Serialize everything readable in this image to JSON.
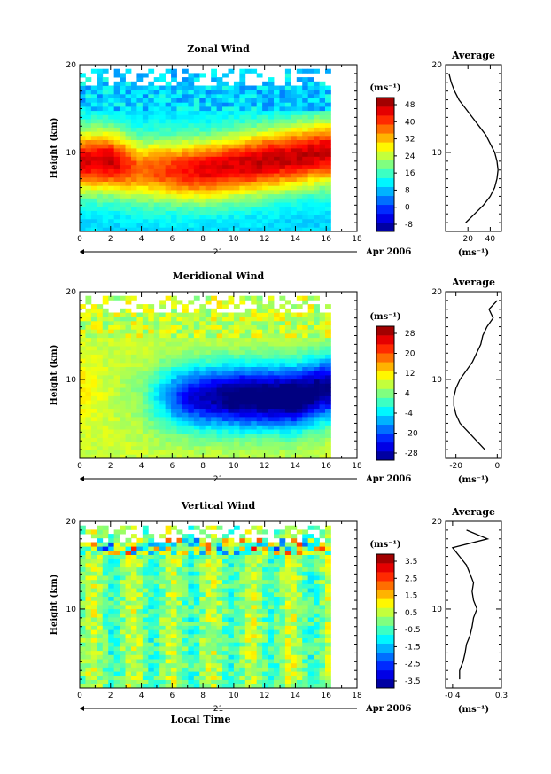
{
  "chart_data": [
    {
      "type": "heatmap",
      "title": "Zonal Wind",
      "ylabel": "Height (km)",
      "xlim": [
        0,
        18
      ],
      "ylim": [
        1,
        20
      ],
      "x_ticks": [
        0,
        2,
        4,
        6,
        8,
        10,
        12,
        14,
        16,
        18
      ],
      "y_ticks": [
        10,
        20
      ],
      "day_label": "21",
      "date_label": "Apr 2006",
      "xlabel": "",
      "colorbar": {
        "unit_label": "(ms⁻¹)",
        "ticks": [
          "48",
          "40",
          "32",
          "24",
          "16",
          "8",
          "0",
          "-8"
        ],
        "range": [
          -8,
          52
        ]
      },
      "field": {
        "x_end": 16.3,
        "jet_core": [
          {
            "x": 0,
            "height": 9,
            "speed": 46
          },
          {
            "x": 2,
            "height": 9,
            "speed": 48
          },
          {
            "x": 4,
            "height": 8,
            "speed": 38
          },
          {
            "x": 8,
            "height": 8,
            "speed": 46
          },
          {
            "x": 12,
            "height": 9,
            "speed": 48
          },
          {
            "x": 16,
            "height": 10,
            "speed": 48
          }
        ]
      },
      "profile": {
        "title": "Average",
        "xlabel": "(ms⁻¹)",
        "xlim": [
          0,
          50
        ],
        "x_ticks": [
          20,
          40
        ],
        "height": [
          2,
          3,
          4,
          5,
          6,
          7,
          8,
          9,
          10,
          11,
          12,
          13,
          14,
          15,
          16,
          17,
          18,
          19
        ],
        "values": [
          18,
          26,
          34,
          40,
          44,
          46,
          47,
          46,
          44,
          40,
          36,
          30,
          24,
          18,
          12,
          8,
          5,
          3
        ]
      }
    },
    {
      "type": "heatmap",
      "title": "Meridional Wind",
      "ylabel": "Height (km)",
      "xlim": [
        0,
        18
      ],
      "ylim": [
        1,
        20
      ],
      "x_ticks": [
        0,
        2,
        4,
        6,
        8,
        10,
        12,
        14,
        16,
        18
      ],
      "y_ticks": [
        10,
        20
      ],
      "day_label": "21",
      "date_label": "Apr 2006",
      "xlabel": "",
      "colorbar": {
        "unit_label": "(ms⁻¹)",
        "ticks": [
          "28",
          "20",
          "12",
          "4",
          "-4",
          "-20",
          "-28"
        ],
        "range": [
          -28,
          28
        ]
      },
      "field": {
        "x_end": 16.3,
        "jet_core": [
          {
            "x": 0,
            "height": 9,
            "speed": 8
          },
          {
            "x": 4,
            "height": 8,
            "speed": 0
          },
          {
            "x": 7,
            "height": 8,
            "speed": -22
          },
          {
            "x": 10,
            "height": 8,
            "speed": -30
          },
          {
            "x": 14,
            "height": 8,
            "speed": -32
          },
          {
            "x": 16,
            "height": 9,
            "speed": -28
          }
        ]
      },
      "profile": {
        "title": "Average",
        "xlabel": "(ms⁻¹)",
        "xlim": [
          -25,
          2
        ],
        "x_ticks": [
          -20,
          0
        ],
        "height": [
          2,
          3,
          4,
          5,
          6,
          7,
          8,
          9,
          10,
          11,
          12,
          13,
          14,
          15,
          16,
          17,
          18,
          19
        ],
        "values": [
          -6,
          -10,
          -14,
          -18,
          -20,
          -21,
          -21,
          -20,
          -18,
          -15,
          -12,
          -10,
          -8,
          -7,
          -5,
          -2,
          -4,
          0
        ]
      }
    },
    {
      "type": "heatmap",
      "title": "Vertical Wind",
      "ylabel": "Height (km)",
      "xlim": [
        0,
        18
      ],
      "ylim": [
        1,
        20
      ],
      "x_ticks": [
        0,
        2,
        4,
        6,
        8,
        10,
        12,
        14,
        16,
        18
      ],
      "y_ticks": [
        10,
        20
      ],
      "day_label": "21",
      "date_label": "Apr 2006",
      "xlabel": "Local Time",
      "colorbar": {
        "unit_label": "(ms⁻¹)",
        "ticks": [
          "3.5",
          "2.5",
          "1.5",
          "0.5",
          "-0.5",
          "-1.5",
          "-2.5",
          "-3.5"
        ],
        "range": [
          -4,
          4
        ]
      },
      "field": {
        "x_end": 16.3,
        "jet_core": []
      },
      "profile": {
        "title": "Average",
        "xlabel": "(ms⁻¹)",
        "xlim": [
          -0.5,
          0.3
        ],
        "x_ticks": [
          -0.4,
          0.3
        ],
        "height": [
          2,
          3,
          4,
          5,
          6,
          7,
          8,
          9,
          10,
          11,
          12,
          13,
          14,
          15,
          16,
          17,
          18,
          19
        ],
        "values": [
          -0.3,
          -0.3,
          -0.25,
          -0.22,
          -0.2,
          -0.15,
          -0.12,
          -0.1,
          -0.05,
          -0.1,
          -0.12,
          -0.1,
          -0.15,
          -0.2,
          -0.3,
          -0.4,
          0.1,
          -0.2
        ]
      }
    }
  ]
}
